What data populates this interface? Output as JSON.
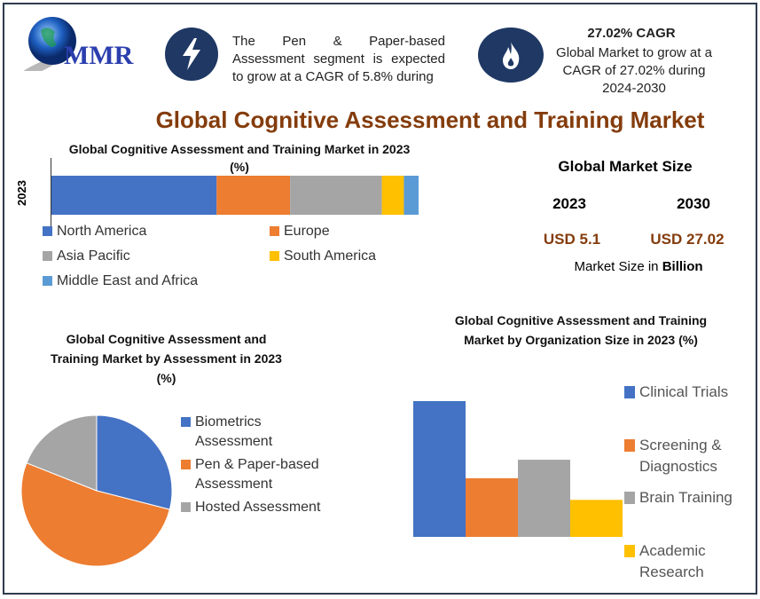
{
  "logo": {
    "text": "MMR"
  },
  "highlights": [
    {
      "icon": "lightning-icon",
      "text": "The Pen & Paper-based Assessment segment is expected to grow at a CAGR of 5.8% during"
    },
    {
      "icon": "flame-icon",
      "title": "27.02% CAGR",
      "text": "Global Market to grow at a CAGR of 27.02% during 2024-2030"
    }
  ],
  "main_title": "Global Cognitive Assessment and Training Market",
  "market_size": {
    "title": "Global Market Size",
    "years": [
      "2023",
      "2030"
    ],
    "values": [
      "USD 5.1",
      "USD 27.02"
    ],
    "unit_prefix": "Market Size in ",
    "unit_bold": "Billion"
  },
  "colors": {
    "blue": "#4472c4",
    "orange": "#ed7d31",
    "gray": "#a5a5a5",
    "yellow": "#ffc000",
    "light_blue": "#5b9bd5",
    "title_brown": "#843c0c",
    "navy": "#1f3864"
  },
  "chart_data": [
    {
      "type": "bar",
      "stacked": true,
      "orientation": "horizontal",
      "title": "Global Cognitive Assessment and Training Market in 2023 (%)",
      "categories": [
        "2023"
      ],
      "series": [
        {
          "name": "North America",
          "values": [
            45
          ],
          "color": "#4472c4"
        },
        {
          "name": "Europe",
          "values": [
            20
          ],
          "color": "#ed7d31"
        },
        {
          "name": "Asia Pacific",
          "values": [
            25
          ],
          "color": "#a5a5a5"
        },
        {
          "name": "South America",
          "values": [
            6
          ],
          "color": "#ffc000"
        },
        {
          "name": "Middle East and Africa",
          "values": [
            4
          ],
          "color": "#5b9bd5"
        }
      ],
      "legend": "bottom"
    },
    {
      "type": "pie",
      "title": "Global Cognitive Assessment and Training Market by Assessment in 2023 (%)",
      "labels": [
        "Biometrics Assessment",
        "Pen & Paper-based Assessment",
        "Hosted Assessment"
      ],
      "values": [
        29,
        52,
        19
      ],
      "colors": [
        "#4472c4",
        "#ed7d31",
        "#a5a5a5"
      ],
      "legend": "right"
    },
    {
      "type": "bar",
      "title": "Global Cognitive Assessment and Training Market by Organization Size in 2023 (%)",
      "categories": [
        "Clinical Trials",
        "Screening & Diagnostics",
        "Brain Training",
        "Academic Research"
      ],
      "values": [
        44,
        19,
        25,
        12
      ],
      "colors": [
        "#4472c4",
        "#ed7d31",
        "#a5a5a5",
        "#ffc000"
      ],
      "legend": "right"
    }
  ]
}
